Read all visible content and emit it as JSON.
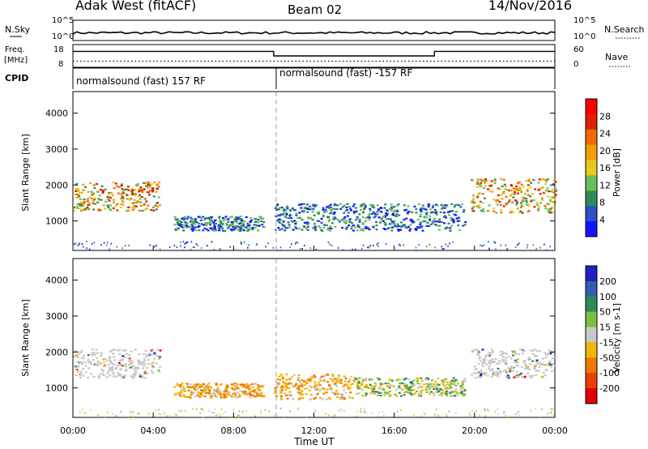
{
  "header": {
    "station": "Adak West (fitACF)",
    "beam": "Beam 02",
    "date": "14/Nov/2016"
  },
  "side_labels": {
    "nsky": "N.Sky",
    "nsearch": "N.Search",
    "freq_line1": "Freq.",
    "freq_line2": "[MHz]",
    "nave": "Nave",
    "cpid": "CPID"
  },
  "colors": {
    "power_scale": [
      "#1414ff",
      "#2e4fc8",
      "#2e8b57",
      "#6bbf59",
      "#e8c81e",
      "#f0a000",
      "#f26b00",
      "#e02000",
      "#ff0000"
    ],
    "velocity_scale": [
      "#2020c0",
      "#2f5fb0",
      "#2e8b57",
      "#7cc040",
      "#c8c8c8",
      "#f0b800",
      "#f07800",
      "#e84000",
      "#e00000"
    ]
  },
  "chart_data": [
    {
      "type": "line",
      "title": "",
      "xlabel": "",
      "ylabel": "N.Sky",
      "ylabel_right": "N.Search",
      "y_ticks_left": [
        "10^5",
        "10^0"
      ],
      "y_ticks_right": [
        "10^5",
        "10^0"
      ],
      "series": [
        {
          "name": "N.Sky",
          "x": [
            "00:00",
            "04:00",
            "08:00",
            "12:00",
            "16:00",
            "20:00",
            "24:00"
          ],
          "values": [
            10,
            12,
            11,
            12,
            11,
            12,
            10
          ]
        }
      ]
    },
    {
      "type": "line",
      "ylabel": "Freq. [MHz]",
      "ylabel_right": "Nave",
      "y_ticks_left": [
        "18",
        "8"
      ],
      "y_ticks_right": [
        "60",
        "0"
      ],
      "series": [
        {
          "name": "Freq.",
          "x": [
            "00:00",
            "10:00",
            "10:00",
            "18:00",
            "18:00",
            "24:00"
          ],
          "values": [
            15,
            15,
            13,
            13,
            15,
            15
          ]
        },
        {
          "name": "Nave",
          "x": [
            "00:00",
            "24:00"
          ],
          "values": [
            16,
            16
          ]
        }
      ]
    },
    {
      "type": "table",
      "ylabel": "CPID",
      "segments": [
        {
          "start": "00:00",
          "end": "10:00",
          "label": "normalsound (fast) 157 RF"
        },
        {
          "start": "10:00",
          "end": "24:00",
          "label": "normalsound (fast) -157 RF"
        }
      ]
    },
    {
      "type": "heatmap",
      "title": "",
      "xlabel": "",
      "ylabel": "Slant Range [km]",
      "y_ticks": [
        "4000",
        "3000",
        "2000",
        "1000"
      ],
      "ylim": [
        180,
        4600
      ],
      "colorbar_label": "Power [dB]",
      "colorbar_ticks": [
        "28",
        "24",
        "20",
        "16",
        "12",
        "8",
        "4"
      ],
      "regions": [
        {
          "t0": 0.0,
          "t1": 4.3,
          "r0": 1300,
          "r1": 2100,
          "level": "high"
        },
        {
          "t0": 5.0,
          "t1": 9.5,
          "r0": 750,
          "r1": 1150,
          "level": "low"
        },
        {
          "t0": 10.0,
          "t1": 19.5,
          "r0": 750,
          "r1": 1500,
          "level": "low"
        },
        {
          "t0": 19.8,
          "t1": 24.0,
          "r0": 1250,
          "r1": 2200,
          "level": "high"
        }
      ]
    },
    {
      "type": "heatmap",
      "title": "",
      "xlabel": "Time UT",
      "ylabel": "Slant Range [km]",
      "y_ticks": [
        "4000",
        "3000",
        "2000",
        "1000"
      ],
      "ylim": [
        180,
        4600
      ],
      "x_ticks": [
        "00:00",
        "04:00",
        "08:00",
        "12:00",
        "16:00",
        "20:00",
        "00:00"
      ],
      "colorbar_label": "Velocity [m s-1]",
      "colorbar_ticks": [
        "200",
        "100",
        "50",
        "15",
        "-15",
        "-50",
        "-100",
        "-200"
      ],
      "regions": [
        {
          "t0": 0.0,
          "t1": 4.3,
          "r0": 1300,
          "r1": 2100,
          "level": "gray"
        },
        {
          "t0": 5.0,
          "t1": 9.5,
          "r0": 750,
          "r1": 1150,
          "level": "orange"
        },
        {
          "t0": 10.0,
          "t1": 14.0,
          "r0": 700,
          "r1": 1400,
          "level": "orange"
        },
        {
          "t0": 14.0,
          "t1": 19.5,
          "r0": 800,
          "r1": 1300,
          "level": "mixed"
        },
        {
          "t0": 19.8,
          "t1": 24.0,
          "r0": 1300,
          "r1": 2100,
          "level": "gray"
        }
      ]
    }
  ]
}
